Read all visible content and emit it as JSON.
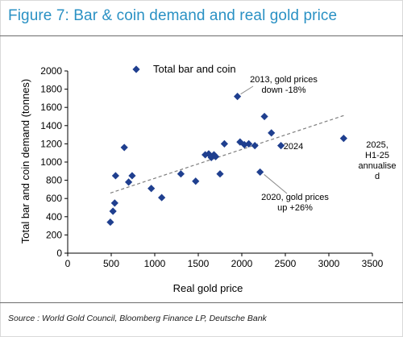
{
  "figure": {
    "title": "Figure 7: Bar & coin demand and real gold price",
    "source": "Source : World Gold Council, Bloomberg Finance LP, Deutsche Bank",
    "title_color": "#2a91c4"
  },
  "chart_data": {
    "type": "scatter",
    "title": "",
    "xlabel": "Real gold price",
    "ylabel": "Total bar and coin demand (tonnes)",
    "xlim": [
      0,
      3500
    ],
    "ylim": [
      0,
      2000
    ],
    "x_ticks": [
      0,
      500,
      1000,
      1500,
      2000,
      2500,
      3000,
      3500
    ],
    "y_ticks": [
      0,
      200,
      400,
      600,
      800,
      1000,
      1200,
      1400,
      1600,
      1800,
      2000
    ],
    "grid": false,
    "legend_position": "top-left",
    "marker_color": "#1f3f8f",
    "series": [
      {
        "name": "Total bar and coin",
        "marker": "diamond",
        "x": [
          490,
          520,
          540,
          550,
          650,
          700,
          740,
          960,
          1080,
          1300,
          1470,
          1580,
          1620,
          1650,
          1680,
          1700,
          1750,
          1800,
          1950,
          1980,
          2030,
          2080,
          2150,
          2210,
          2260,
          2340,
          2450,
          3170
        ],
        "y": [
          340,
          460,
          550,
          850,
          1160,
          780,
          850,
          710,
          610,
          870,
          790,
          1080,
          1090,
          1050,
          1080,
          1060,
          870,
          1200,
          1720,
          1220,
          1190,
          1200,
          1180,
          890,
          1500,
          1320,
          1180,
          1260
        ]
      }
    ],
    "trendline": {
      "style": "dashed",
      "color": "#7f7f7f",
      "x": [
        490,
        3170
      ],
      "y": [
        660,
        1510
      ]
    },
    "annotations": [
      {
        "lines": [
          "2013, gold prices",
          "down -18%"
        ],
        "arrow": true
      },
      {
        "lines": [
          "2020, gold prices",
          "up +26%"
        ],
        "arrow": true
      },
      {
        "lines": [
          "2024"
        ],
        "arrow": false
      },
      {
        "lines": [
          "2025,",
          "H1-25",
          "annualise",
          "d"
        ],
        "arrow": false
      }
    ]
  }
}
